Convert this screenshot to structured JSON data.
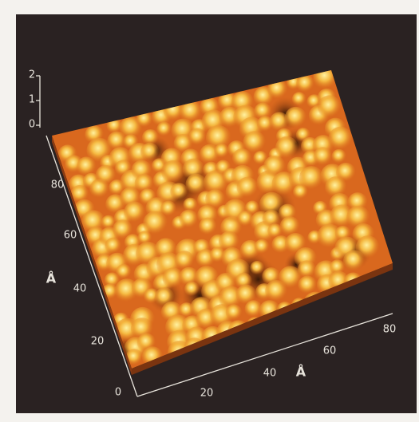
{
  "z_axis": {
    "ticks": [
      "2",
      "1",
      "0"
    ]
  },
  "y_axis": {
    "ticks": [
      "80",
      "60",
      "40",
      "20",
      "0"
    ],
    "label": "Å"
  },
  "x_axis": {
    "ticks": [
      "20",
      "40",
      "60",
      "80"
    ],
    "label": "Å"
  }
}
